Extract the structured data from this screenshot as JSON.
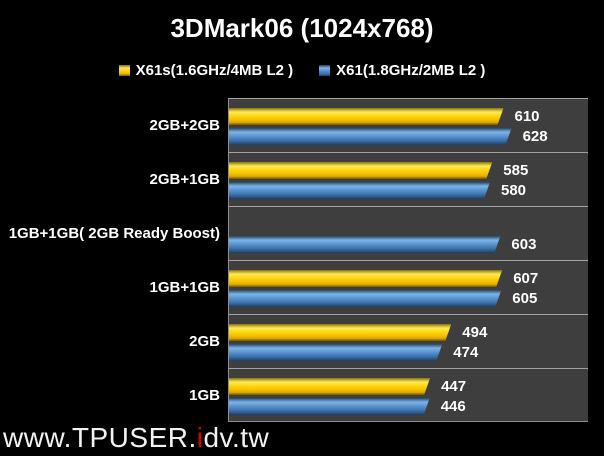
{
  "chart_data": {
    "type": "bar",
    "orientation": "horizontal",
    "title": "3DMark06 (1024x768)",
    "categories": [
      "2GB+2GB",
      "2GB+1GB",
      "1GB+1GB( 2GB Ready Boost)",
      "1GB+1GB",
      "2GB",
      "1GB"
    ],
    "series": [
      {
        "name": "X61s(1.6GHz/4MB L2 )",
        "color": "#F6C500",
        "values": [
          610,
          585,
          null,
          607,
          494,
          447
        ]
      },
      {
        "name": "X61(1.8GHz/2MB L2 )",
        "color": "#4B86C6",
        "values": [
          628,
          580,
          603,
          605,
          474,
          446
        ]
      }
    ],
    "xlim": [
      0,
      800
    ],
    "grid": false,
    "legend_position": "top",
    "value_labels": true,
    "plot_background": "#3E3E3E",
    "page_background": "#000000",
    "text_color": "#FFFFFF"
  },
  "watermark": {
    "prefix": "www.TPUSER.",
    "highlight": "i",
    "suffix": "dv.tw",
    "highlight_color": "#DD0000"
  }
}
